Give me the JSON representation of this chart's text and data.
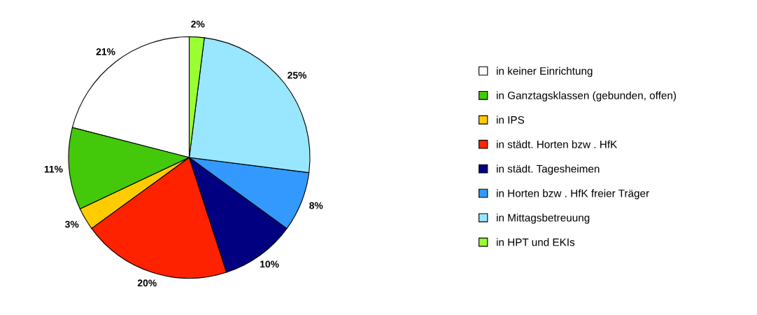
{
  "chart_data": {
    "type": "pie",
    "categories": [
      "in keiner Einrichtung",
      "in Ganztagsklassen (gebunden, offen)",
      "in IPS",
      "in städt. Horten bzw . HfK",
      "in städt. Tagesheimen",
      "in Horten bzw . HfK freier Träger",
      "in Mittagsbetreuung",
      "in HPT und EKIs"
    ],
    "values": [
      21,
      11,
      3,
      20,
      10,
      8,
      25,
      2
    ],
    "value_labels": [
      "21%",
      "11%",
      "3%",
      "20%",
      "10%",
      "8%",
      "25%",
      "2%"
    ],
    "colors": [
      "#ffffff",
      "#44c80a",
      "#ffcc00",
      "#ff2200",
      "#000080",
      "#3399ff",
      "#99e6ff",
      "#99ff33"
    ],
    "legend": "right"
  }
}
